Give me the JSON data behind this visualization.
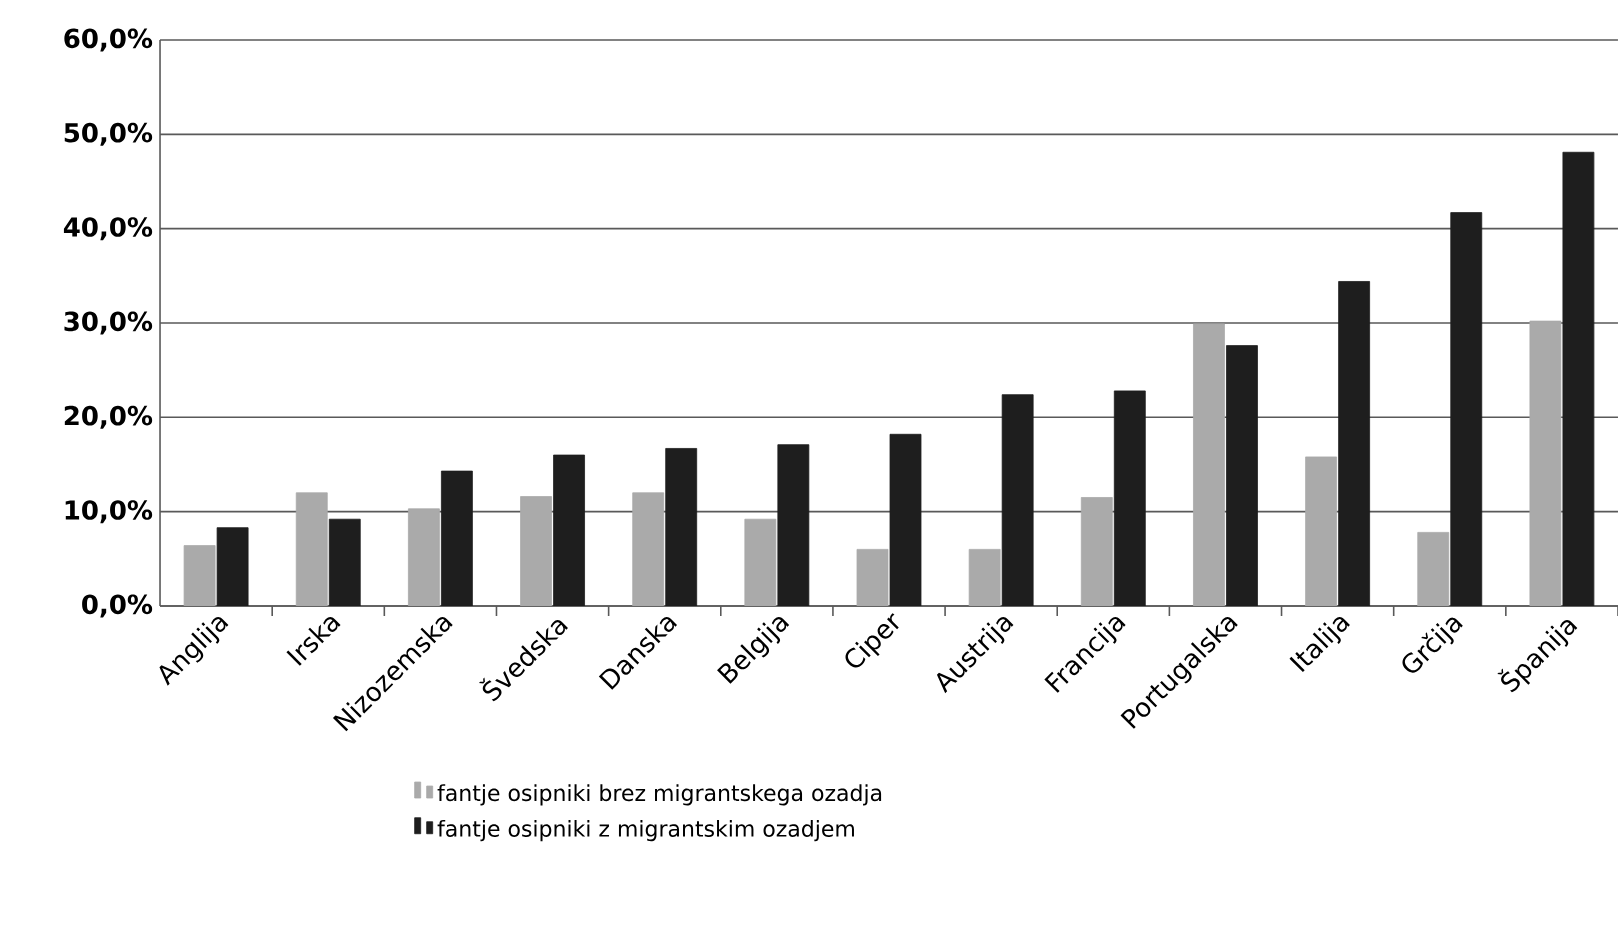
{
  "chart_data": {
    "type": "bar",
    "categories": [
      "Anglija",
      "Irska",
      "Nizozemska",
      "Švedska",
      "Danska",
      "Belgija",
      "Ciper",
      "Austrija",
      "Francija",
      "Portugalska",
      "Italija",
      "Grčija",
      "Španija"
    ],
    "series": [
      {
        "name": "fantje osipniki brez migrantskega ozadja",
        "color": "#aaaaaa",
        "values": [
          6.4,
          12.0,
          10.3,
          11.6,
          12.0,
          9.2,
          6.0,
          6.0,
          11.5,
          29.9,
          15.8,
          7.8,
          30.2
        ]
      },
      {
        "name": "fantje osipniki z migrantskim ozadjem",
        "color": "#1e1e1e",
        "values": [
          8.3,
          9.2,
          14.3,
          16.0,
          16.7,
          17.1,
          18.2,
          22.4,
          22.8,
          27.6,
          34.4,
          41.7,
          48.1
        ]
      }
    ],
    "ylim": [
      0,
      60
    ],
    "yticks": [
      {
        "value": 0,
        "label": "0,0%"
      },
      {
        "value": 10,
        "label": "10,0%"
      },
      {
        "value": 20,
        "label": "20,0%"
      },
      {
        "value": 30,
        "label": "30,0%"
      },
      {
        "value": 40,
        "label": "40,0%"
      },
      {
        "value": 50,
        "label": "50,0%"
      },
      {
        "value": 60,
        "label": "60,0%"
      }
    ],
    "grid": "y",
    "legend": "bottom"
  }
}
